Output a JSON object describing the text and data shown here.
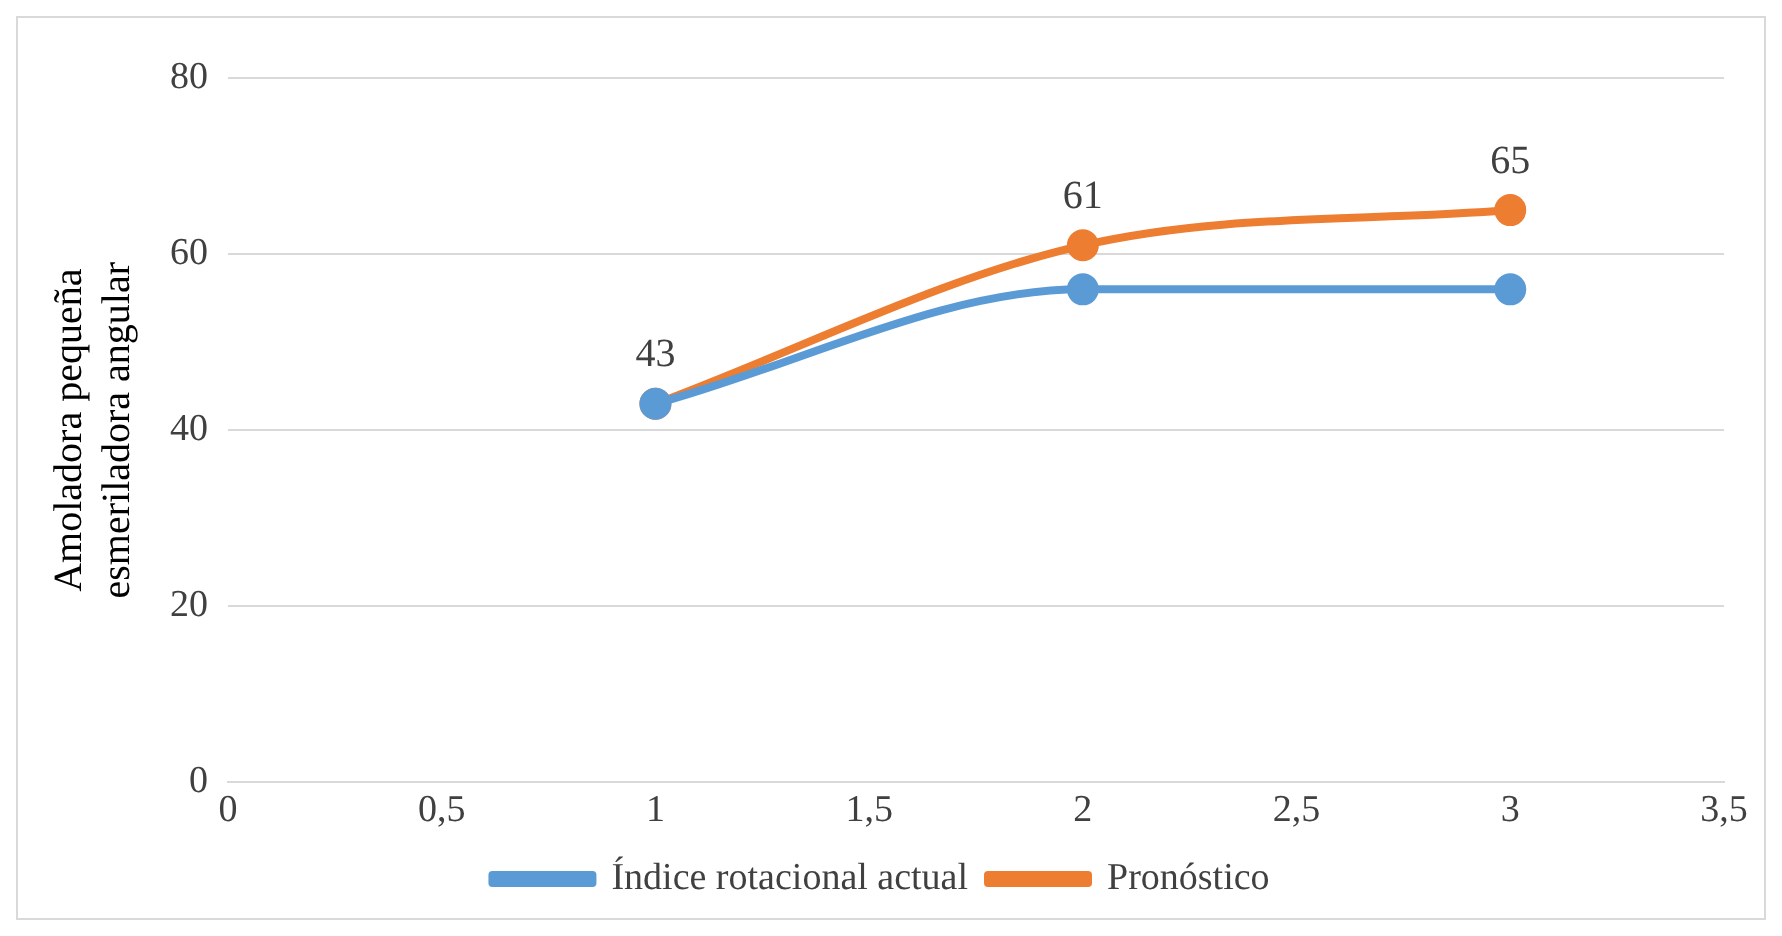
{
  "chart_data": {
    "type": "line",
    "ylabel": "Amoladora pequeña esmeriladora angular",
    "x": [
      1,
      2,
      3
    ],
    "series": [
      {
        "name": "Índice rotacional actual",
        "color": "#5b9bd5",
        "values": [
          43,
          56,
          56
        ]
      },
      {
        "name": "Pronóstico",
        "color": "#ed7d31",
        "values": [
          43,
          61,
          65
        ],
        "value_labels": [
          "43",
          "61",
          "65"
        ]
      }
    ],
    "xlim": [
      0,
      3.5
    ],
    "xticks": [
      0,
      {
        "value": 0.5,
        "label": "0,5"
      },
      1,
      {
        "value": 1.5,
        "label": "1,5"
      },
      2,
      {
        "value": 2.5,
        "label": "2,5"
      },
      3,
      {
        "value": 3.5,
        "label": "3,5"
      }
    ],
    "ylim": [
      0,
      80
    ],
    "yticks": [
      0,
      20,
      40,
      60,
      80
    ],
    "grid": "y",
    "legend": "bottom",
    "marker": "circle",
    "line_style": "solid"
  }
}
